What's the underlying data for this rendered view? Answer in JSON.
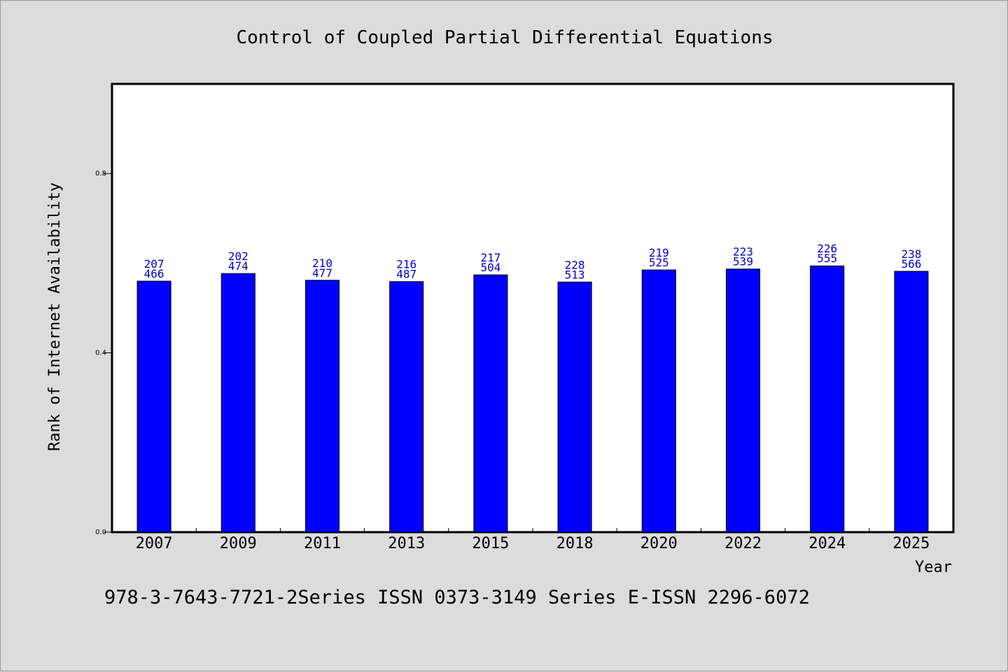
{
  "chart_data": {
    "type": "bar",
    "title": "Control of Coupled Partial Differential Equations",
    "xlabel": "Year",
    "ylabel": "Rank of Internet Availability",
    "categories": [
      "2007",
      "2009",
      "2011",
      "2013",
      "2015",
      "2018",
      "2020",
      "2022",
      "2024",
      "2025"
    ],
    "series": [
      {
        "values": [
          0.56,
          0.577,
          0.562,
          0.559,
          0.574,
          0.558,
          0.585,
          0.587,
          0.594,
          0.582
        ]
      }
    ],
    "data_labels": [
      [
        "207",
        "466"
      ],
      [
        "202",
        "474"
      ],
      [
        "210",
        "477"
      ],
      [
        "216",
        "487"
      ],
      [
        "217",
        "504"
      ],
      [
        "228",
        "513"
      ],
      [
        "219",
        "525"
      ],
      [
        "223",
        "539"
      ],
      [
        "226",
        "555"
      ],
      [
        "238",
        "566"
      ]
    ],
    "yticks": [
      "0.0",
      "0.4",
      "0.8"
    ],
    "ytick_values": [
      0.0,
      0.4,
      0.8
    ],
    "ylim": [
      0,
      1.0
    ],
    "grid": false,
    "legend": "none",
    "bar_color": "#0000ff",
    "label_color": "#0000cc",
    "plot_background": "#ffffff",
    "page_background": "#dcdcdc"
  },
  "footer": {
    "text": "978-3-7643-7721-2Series ISSN 0373-3149 Series E-ISSN 2296-6072"
  }
}
